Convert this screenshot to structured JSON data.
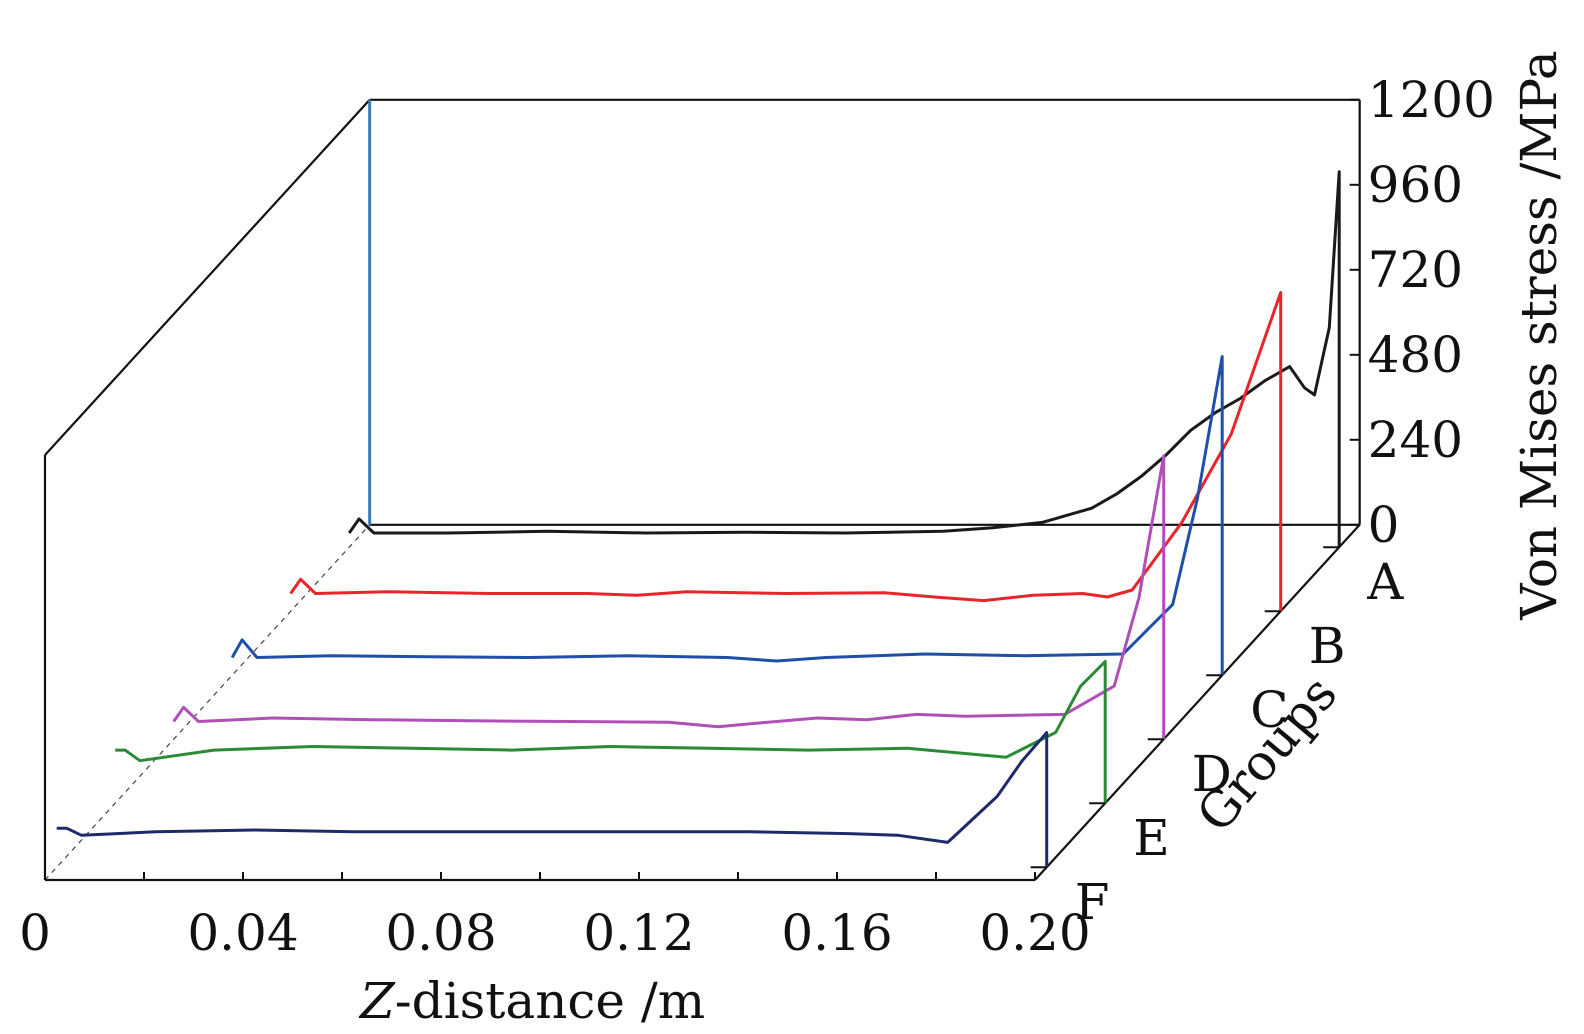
{
  "chart_data": {
    "type": "line",
    "projection": "3d-waterfall",
    "xlabel_prefix": "Z",
    "xlabel_suffix": "-distance /m",
    "ylabel": "Von Mises stress /MPa",
    "zlabel": "Groups",
    "x_ticks": [
      "0",
      "0.04",
      "0.08",
      "0.12",
      "0.16",
      "0.20"
    ],
    "y_ticks": [
      "0",
      "240",
      "480",
      "720",
      "960",
      "1200"
    ],
    "xlim": [
      0,
      0.2
    ],
    "ylim": [
      0,
      1200
    ],
    "groups": [
      "A",
      "B",
      "C",
      "D",
      "E",
      "F"
    ],
    "series": [
      {
        "name": "A",
        "color": "#1a1a1a",
        "x": [
          0,
          0.002,
          0.005,
          0.02,
          0.04,
          0.06,
          0.08,
          0.1,
          0.12,
          0.13,
          0.14,
          0.15,
          0.155,
          0.16,
          0.165,
          0.17,
          0.175,
          0.18,
          0.185,
          0.19,
          0.193,
          0.195,
          0.198,
          0.2,
          0.2
        ],
        "y": [
          40,
          80,
          40,
          40,
          45,
          40,
          42,
          40,
          45,
          55,
          70,
          110,
          150,
          200,
          260,
          330,
          380,
          420,
          470,
          510,
          450,
          430,
          620,
          1060,
          0
        ]
      },
      {
        "name": "B",
        "color": "#e8252a",
        "x": [
          0,
          0.002,
          0.005,
          0.02,
          0.04,
          0.06,
          0.07,
          0.08,
          0.1,
          0.12,
          0.13,
          0.14,
          0.15,
          0.16,
          0.165,
          0.17,
          0.18,
          0.19,
          0.2,
          0.2
        ],
        "y": [
          50,
          90,
          50,
          55,
          50,
          50,
          45,
          55,
          50,
          52,
          40,
          30,
          45,
          50,
          40,
          60,
          250,
          500,
          900,
          0
        ]
      },
      {
        "name": "C",
        "color": "#1f4fa8",
        "x": [
          0,
          0.002,
          0.005,
          0.02,
          0.04,
          0.06,
          0.08,
          0.1,
          0.11,
          0.12,
          0.13,
          0.14,
          0.16,
          0.18,
          0.19,
          0.195,
          0.2,
          0.2
        ],
        "y": [
          50,
          100,
          50,
          55,
          52,
          50,
          55,
          50,
          40,
          50,
          55,
          60,
          55,
          60,
          200,
          500,
          900,
          0
        ]
      },
      {
        "name": "D",
        "color": "#b04fb8",
        "x": [
          0,
          0.002,
          0.005,
          0.02,
          0.04,
          0.06,
          0.08,
          0.1,
          0.11,
          0.12,
          0.13,
          0.14,
          0.15,
          0.16,
          0.18,
          0.19,
          0.195,
          0.2,
          0.2
        ],
        "y": [
          50,
          90,
          50,
          60,
          55,
          52,
          50,
          48,
          35,
          48,
          60,
          55,
          70,
          65,
          70,
          150,
          400,
          800,
          0
        ]
      },
      {
        "name": "E",
        "color": "#2a8a36",
        "x": [
          0,
          0.002,
          0.005,
          0.02,
          0.04,
          0.06,
          0.08,
          0.1,
          0.12,
          0.14,
          0.16,
          0.18,
          0.19,
          0.195,
          0.2,
          0.2
        ],
        "y": [
          150,
          150,
          120,
          150,
          160,
          155,
          150,
          160,
          155,
          150,
          155,
          130,
          200,
          330,
          400,
          0
        ]
      },
      {
        "name": "F",
        "color": "#1f2a6b",
        "x": [
          0,
          0.002,
          0.005,
          0.02,
          0.04,
          0.06,
          0.08,
          0.1,
          0.12,
          0.14,
          0.16,
          0.17,
          0.18,
          0.19,
          0.195,
          0.2,
          0.2
        ],
        "y": [
          110,
          110,
          90,
          100,
          105,
          100,
          100,
          100,
          100,
          100,
          95,
          90,
          70,
          200,
          300,
          380,
          0
        ]
      }
    ],
    "back_wall_marker": {
      "x": 0,
      "y_max": 1200,
      "color": "#3a78c0"
    },
    "grid": false,
    "legend": "none"
  }
}
